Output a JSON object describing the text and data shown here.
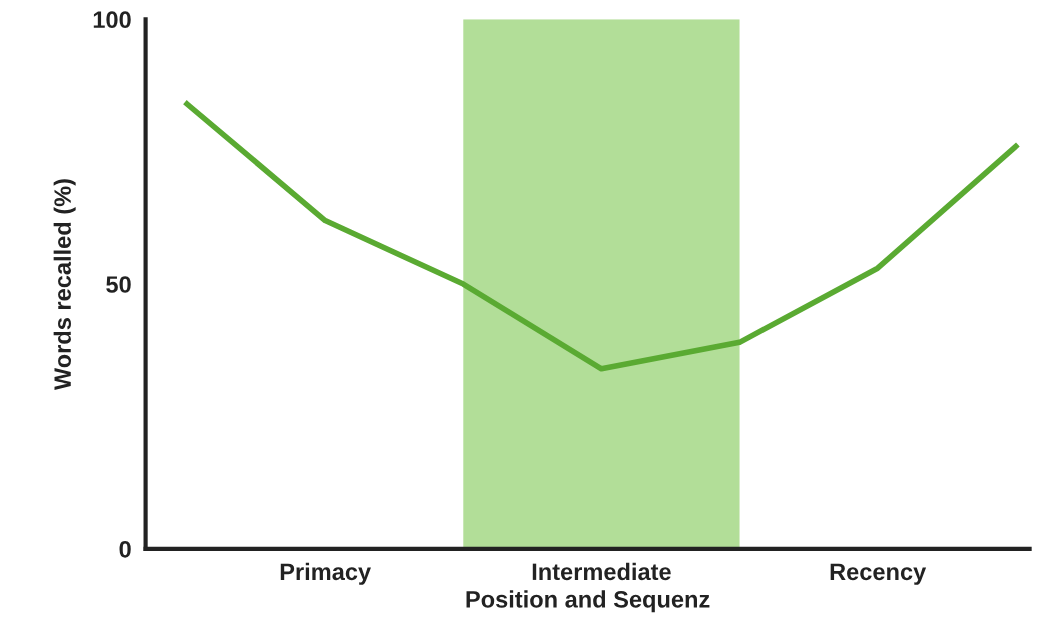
{
  "chart_data": {
    "type": "line",
    "xlabel": "Position and Sequenz",
    "ylabel": "Words recalled (%)",
    "categories": [
      null,
      "Primacy",
      null,
      "Intermediate",
      null,
      "Recency",
      null
    ],
    "series": [
      {
        "color": "#5aaa32",
        "values": [
          84,
          62,
          50,
          34,
          39,
          53,
          76
        ]
      }
    ],
    "ylim": [
      0,
      100
    ],
    "yticks": [
      0,
      50,
      100
    ],
    "grid": false,
    "marker": "none",
    "line_style": "solid"
  }
}
